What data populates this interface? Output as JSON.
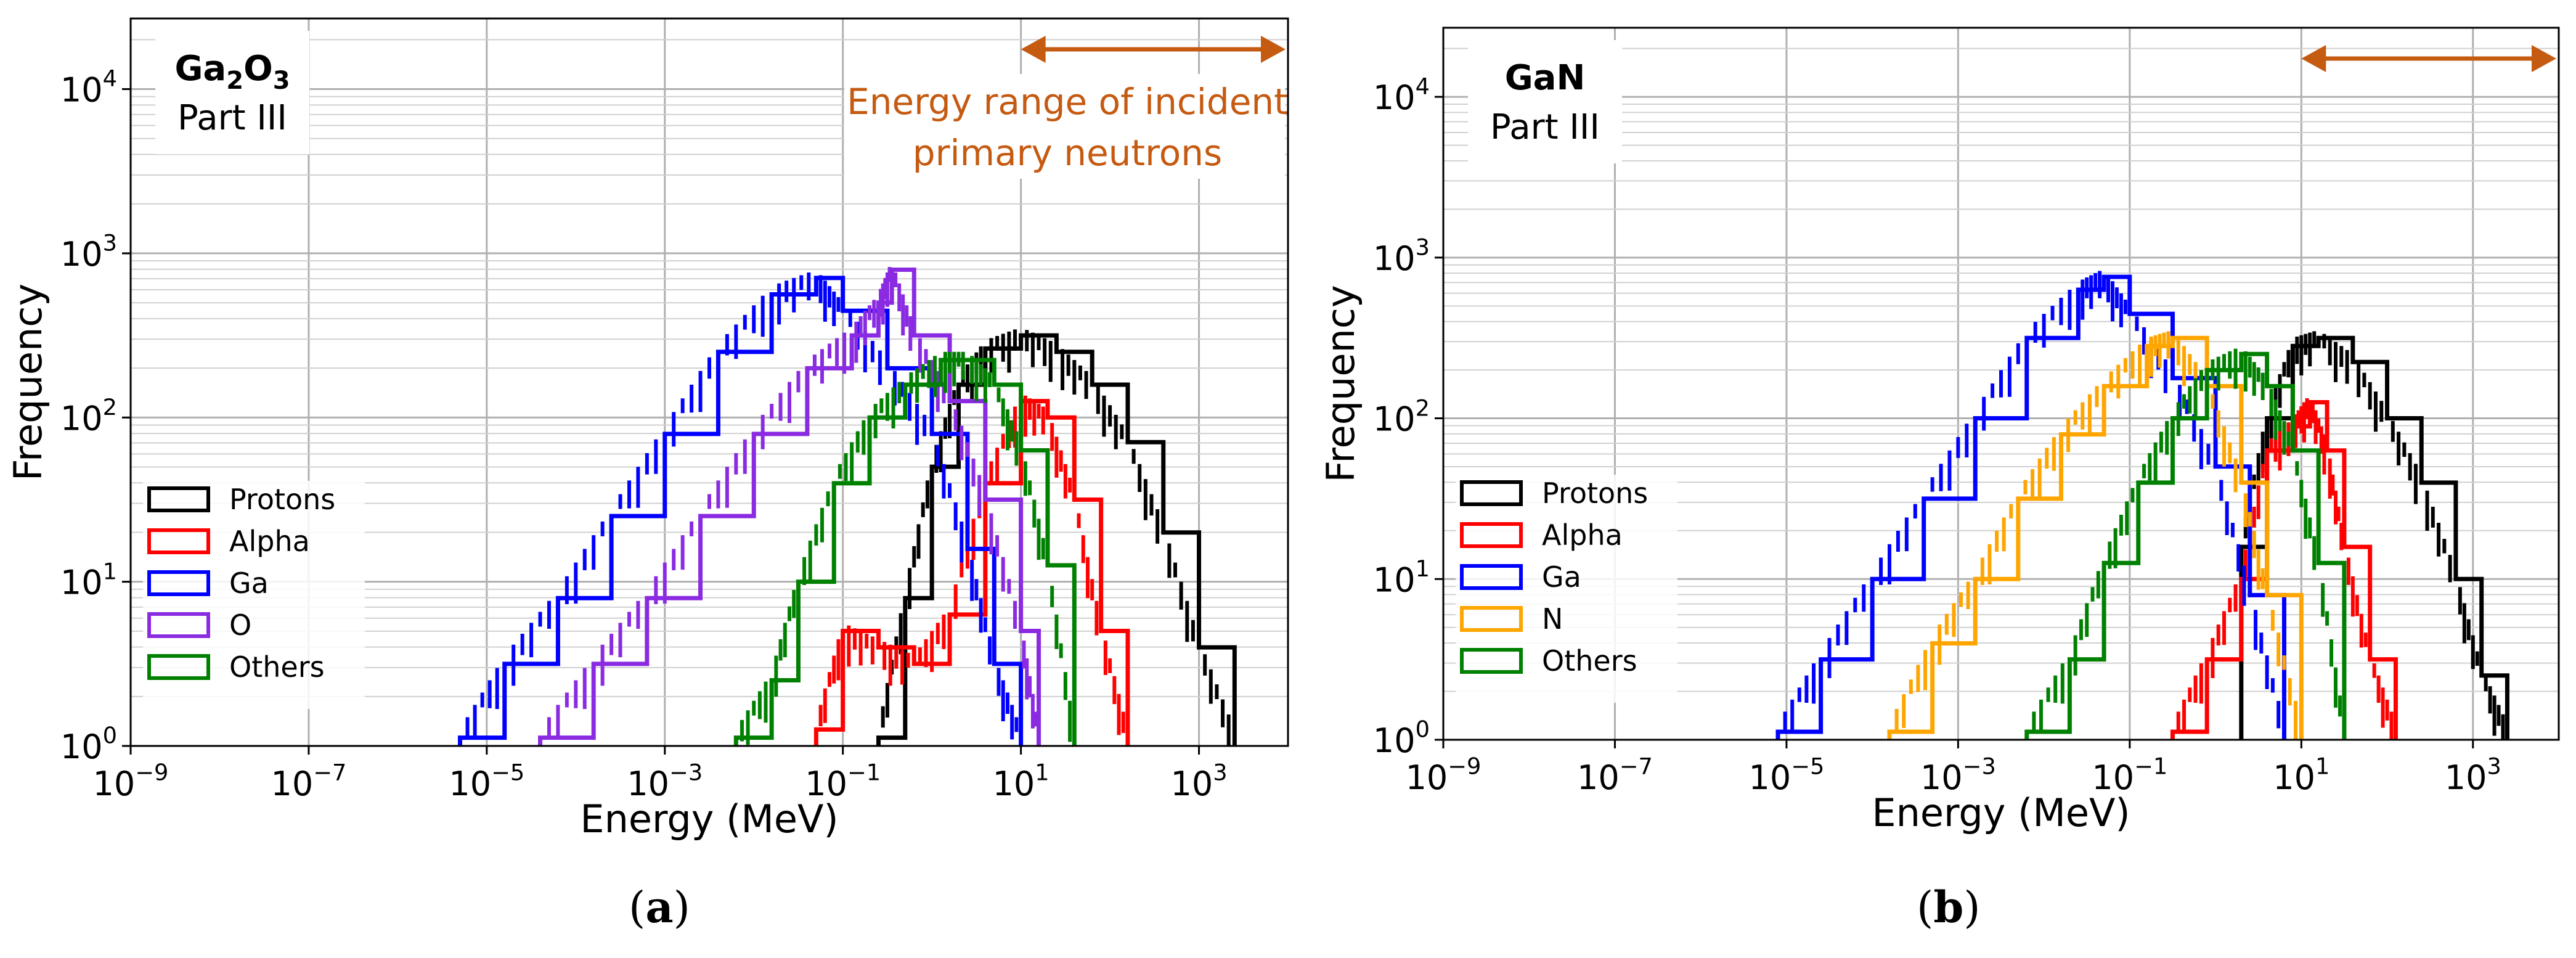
{
  "chart_data": [
    {
      "type": "line",
      "panel": "a",
      "title": "Ga2O3",
      "title_parts": {
        "base": "Ga",
        "sub1": "2",
        "mid": "O",
        "sub2": "3"
      },
      "subtitle": "Part III",
      "xlabel": "Energy (MeV)",
      "ylabel": "Frequency",
      "xscale": "log",
      "yscale": "log",
      "xlim_exp": [
        -9,
        4
      ],
      "ylim_exp": [
        0,
        4.43
      ],
      "xticks": [
        "10^-9",
        "10^-7",
        "10^-5",
        "10^-3",
        "10^-1",
        "10^1",
        "10^3"
      ],
      "xtick_exps": [
        -9,
        -7,
        -5,
        -3,
        -1,
        1,
        3
      ],
      "yticks": [
        "10^0",
        "10^1",
        "10^2",
        "10^3",
        "10^4"
      ],
      "ytick_exps": [
        0,
        1,
        2,
        3,
        4
      ],
      "grid": true,
      "legend_position": "lower-left",
      "annotation": {
        "text_line1": "Energy range of incident",
        "text_line2": "primary neutrons",
        "x_range_exp": [
          1,
          4
        ],
        "color": "#c55a11"
      },
      "series": [
        {
          "name": "Protons",
          "color": "#000000",
          "log10_energy": [
            -0.6,
            -0.3,
            0.0,
            0.3,
            0.6,
            1.0,
            1.4,
            1.8,
            2.2,
            2.6,
            3.0,
            3.4
          ],
          "log10_frequency": [
            0.05,
            0.9,
            1.7,
            2.2,
            2.42,
            2.5,
            2.4,
            2.2,
            1.85,
            1.3,
            0.6,
            0.05
          ]
        },
        {
          "name": "Alpha",
          "color": "#ff0000",
          "log10_energy": [
            -1.3,
            -1.0,
            -0.6,
            -0.2,
            0.2,
            0.6,
            1.0,
            1.3,
            1.6,
            1.9,
            2.2
          ],
          "log10_frequency": [
            0.1,
            0.7,
            0.6,
            0.5,
            0.8,
            1.6,
            2.1,
            2.0,
            1.5,
            0.7,
            0.05
          ]
        },
        {
          "name": "Ga",
          "color": "#0000ff",
          "log10_energy": [
            -5.3,
            -4.8,
            -4.2,
            -3.6,
            -3.0,
            -2.4,
            -1.8,
            -1.3,
            -1.0,
            -0.5,
            0.0,
            0.4,
            0.7,
            1.0
          ],
          "log10_frequency": [
            0.05,
            0.5,
            0.9,
            1.4,
            1.9,
            2.4,
            2.75,
            2.85,
            2.65,
            2.3,
            1.9,
            1.2,
            0.5,
            0.05
          ]
        },
        {
          "name": "O",
          "color": "#8a2be2",
          "log10_energy": [
            -4.4,
            -3.8,
            -3.2,
            -2.6,
            -2.0,
            -1.4,
            -0.9,
            -0.6,
            -0.45,
            -0.2,
            0.2,
            0.6,
            1.0,
            1.2
          ],
          "log10_frequency": [
            0.05,
            0.5,
            0.9,
            1.4,
            1.9,
            2.3,
            2.5,
            2.7,
            2.9,
            2.5,
            2.1,
            1.5,
            0.7,
            0.05
          ]
        },
        {
          "name": "Others",
          "color": "#008000",
          "log10_energy": [
            -2.2,
            -1.8,
            -1.5,
            -1.1,
            -0.7,
            -0.3,
            0.1,
            0.4,
            0.7,
            1.0,
            1.3,
            1.6
          ],
          "log10_frequency": [
            0.05,
            0.4,
            1.0,
            1.6,
            2.0,
            2.2,
            2.35,
            2.35,
            2.2,
            1.8,
            1.1,
            0.05
          ]
        }
      ]
    },
    {
      "type": "line",
      "panel": "b",
      "title": "GaN",
      "subtitle": "Part III",
      "xlabel": "Energy (MeV)",
      "ylabel": "Frequency",
      "xscale": "log",
      "yscale": "log",
      "xlim_exp": [
        -9,
        4
      ],
      "ylim_exp": [
        0,
        4.43
      ],
      "xticks": [
        "10^-9",
        "10^-7",
        "10^-5",
        "10^-3",
        "10^-1",
        "10^1",
        "10^3"
      ],
      "xtick_exps": [
        -9,
        -7,
        -5,
        -3,
        -1,
        1,
        3
      ],
      "yticks": [
        "10^0",
        "10^1",
        "10^2",
        "10^3",
        "10^4"
      ],
      "ytick_exps": [
        0,
        1,
        2,
        3,
        4
      ],
      "grid": true,
      "legend_position": "lower-left",
      "annotation": {
        "x_range_exp": [
          1,
          4
        ],
        "color": "#c55a11"
      },
      "series": [
        {
          "name": "Protons",
          "color": "#000000",
          "log10_energy": [
            0.3,
            0.6,
            0.9,
            1.2,
            1.6,
            2.0,
            2.4,
            2.8,
            3.1,
            3.4
          ],
          "log10_frequency": [
            1.2,
            2.0,
            2.45,
            2.5,
            2.35,
            2.0,
            1.6,
            1.0,
            0.4,
            0.05
          ]
        },
        {
          "name": "Alpha",
          "color": "#ff0000",
          "log10_energy": [
            -0.5,
            -0.1,
            0.3,
            0.6,
            0.9,
            1.1,
            1.3,
            1.5,
            1.8,
            2.1
          ],
          "log10_frequency": [
            0.05,
            0.5,
            1.0,
            1.8,
            1.95,
            2.1,
            1.8,
            1.2,
            0.5,
            0.05
          ]
        },
        {
          "name": "Ga",
          "color": "#0000ff",
          "log10_energy": [
            -5.1,
            -4.6,
            -4.0,
            -3.4,
            -2.8,
            -2.2,
            -1.6,
            -1.3,
            -1.0,
            -0.5,
            0.0,
            0.4,
            0.8
          ],
          "log10_frequency": [
            0.05,
            0.5,
            1.0,
            1.5,
            2.0,
            2.5,
            2.8,
            2.88,
            2.65,
            2.25,
            1.7,
            0.9,
            0.05
          ]
        },
        {
          "name": "N",
          "color": "#ffa500",
          "log10_energy": [
            -3.8,
            -3.3,
            -2.8,
            -2.3,
            -1.8,
            -1.3,
            -0.8,
            -0.5,
            -0.1,
            0.3,
            0.6,
            1.0
          ],
          "log10_frequency": [
            0.05,
            0.6,
            1.0,
            1.5,
            1.9,
            2.2,
            2.45,
            2.5,
            2.2,
            1.6,
            0.9,
            0.05
          ]
        },
        {
          "name": "Others",
          "color": "#008000",
          "log10_energy": [
            -2.2,
            -1.7,
            -1.3,
            -0.9,
            -0.5,
            -0.1,
            0.3,
            0.6,
            0.9,
            1.2,
            1.5
          ],
          "log10_frequency": [
            0.05,
            0.5,
            1.1,
            1.6,
            2.0,
            2.3,
            2.4,
            2.2,
            1.8,
            1.1,
            0.05
          ]
        }
      ]
    }
  ],
  "captions": {
    "a": "a",
    "b": "b"
  }
}
